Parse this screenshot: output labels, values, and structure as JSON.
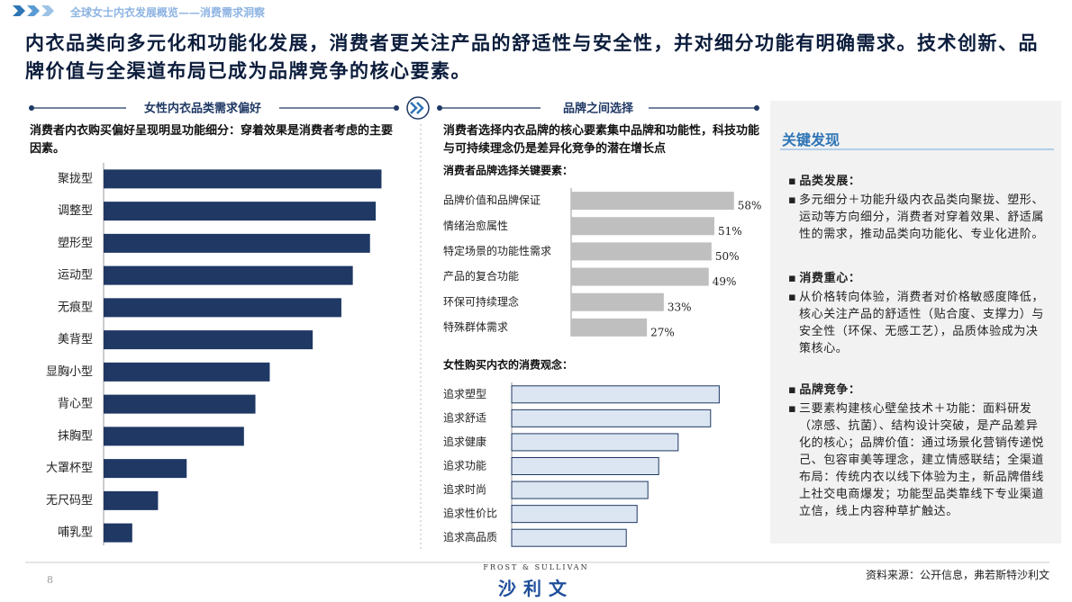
{
  "header": {
    "breadcrumb": "全球女士内衣发展概览——消费需求洞察",
    "headline": "内衣品类向多元化和功能化发展，消费者更关注产品的舒适性与安全性，并对细分功能有明确需求。技术创新、品牌价值与全渠道布局已成为品牌竞争的核心要素。"
  },
  "chart_data": [
    {
      "type": "bar",
      "orientation": "horizontal",
      "panel_title": "女性内衣品类需求偏好",
      "subtitle": "消费者内衣购买偏好呈现明显功能细分：穿着效果是消费者考虑的主要因素。",
      "categories": [
        "聚拢型",
        "调整型",
        "塑形型",
        "运动型",
        "无痕型",
        "美背型",
        "显胸小型",
        "背心型",
        "抹胸型",
        "大罩杯型",
        "无尺码型",
        "哺乳型"
      ],
      "values": [
        97,
        95,
        93,
        87,
        83,
        73,
        58,
        53,
        49,
        29,
        19,
        10
      ],
      "xlim": [
        0,
        100
      ],
      "color": "#1f3864"
    },
    {
      "type": "bar",
      "orientation": "horizontal",
      "panel_title": "品牌之间选择",
      "subtitle": "消费者选择内衣品牌的核心要素集中品牌和功能性，科技功能与可持续理念仍是差异化竞争的潜在增长点",
      "title": "消费者品牌选择关键要素：",
      "categories": [
        "品牌价值和品牌保证",
        "情绪治愈属性",
        "特定场景的功能性需求",
        "产品的复合功能",
        "环保可持续理念",
        "特殊群体需求"
      ],
      "values": [
        58,
        51,
        50,
        49,
        33,
        27
      ],
      "value_labels": [
        "58%",
        "51%",
        "50%",
        "49%",
        "33%",
        "27%"
      ],
      "xlim": [
        0,
        60
      ],
      "color": "#bfbfbf"
    },
    {
      "type": "bar",
      "orientation": "horizontal",
      "title": "女性购买内衣的消费观念：",
      "categories": [
        "追求塑型",
        "追求舒适",
        "追求健康",
        "追求功能",
        "追求时尚",
        "追求性价比",
        "追求高品质"
      ],
      "values": [
        96,
        92,
        77,
        68,
        63,
        58,
        53
      ],
      "xlim": [
        0,
        100
      ],
      "color": "#dce6f2",
      "edge_color": "#1f3864"
    }
  ],
  "findings": {
    "title": "关键发现",
    "sections": [
      {
        "heading": "品类发展：",
        "text": "多元细分＋功能升级内衣品类向聚拢、塑形、运动等方向细分，消费者对穿着效果、舒适属性的需求，推动品类向功能化、专业化进阶。"
      },
      {
        "heading": "消费重心：",
        "text": "从价格转向体验，消费者对价格敏感度降低，核心关注产品的舒适性（贴合度、支撑力）与安全性（环保、无感工艺），品质体验成为决策核心。"
      },
      {
        "heading": "品牌竞争：",
        "text": "三要素构建核心壁垒技术＋功能：面料研发（凉感、抗菌）、结构设计突破，是产品差异化的核心；品牌价值：通过场景化营销传递悦己、包容审美等理念，建立情感联结；全渠道布局：传统内衣以线下体验为主，新品牌借线上社交电商爆发；功能型品类靠线下专业渠道立信，线上内容种草扩触达。"
      }
    ]
  },
  "footer": {
    "page": "8",
    "logo_en": "FROST & SULLIVAN",
    "logo_cn": "沙利文",
    "source": "资料来源：公开信息，弗若斯特沙利文"
  }
}
